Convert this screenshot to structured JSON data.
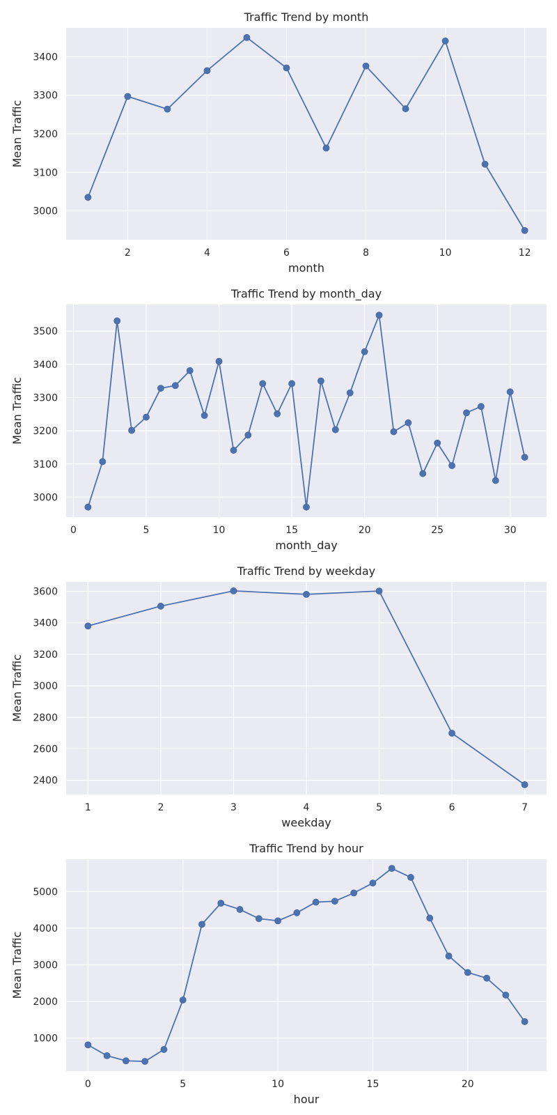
{
  "chart_data": [
    {
      "type": "line",
      "title": "Traffic Trend by month",
      "xlabel": "month",
      "ylabel": "Mean Traffic",
      "x": [
        1,
        2,
        3,
        4,
        5,
        6,
        7,
        8,
        9,
        10,
        11,
        12
      ],
      "values": [
        3035,
        3297,
        3264,
        3364,
        3450,
        3371,
        3163,
        3376,
        3265,
        3441,
        3121,
        2949
      ],
      "xlim": [
        0.45,
        12.55
      ],
      "ylim": [
        2925,
        3475
      ],
      "xticks": [
        2,
        4,
        6,
        8,
        10,
        12
      ],
      "xtick_labels": [
        "2",
        "4",
        "6",
        "8",
        "10",
        "12"
      ],
      "yticks": [
        3000,
        3100,
        3200,
        3300,
        3400
      ],
      "ytick_labels": [
        "3000",
        "3100",
        "3200",
        "3300",
        "3400"
      ],
      "grid": true
    },
    {
      "type": "line",
      "title": "Traffic Trend by month_day",
      "xlabel": "month_day",
      "ylabel": "Mean Traffic",
      "x": [
        1,
        2,
        3,
        4,
        5,
        6,
        7,
        8,
        9,
        10,
        11,
        12,
        13,
        14,
        15,
        16,
        17,
        18,
        19,
        20,
        21,
        22,
        23,
        24,
        25,
        26,
        27,
        28,
        29,
        30,
        31
      ],
      "values": [
        2970,
        3107,
        3531,
        3201,
        3241,
        3328,
        3336,
        3381,
        3246,
        3409,
        3141,
        3187,
        3342,
        3251,
        3342,
        2970,
        3350,
        3203,
        3314,
        3438,
        3548,
        3197,
        3224,
        3071,
        3163,
        3095,
        3254,
        3273,
        3050,
        3317,
        3120
      ],
      "xlim": [
        -0.5,
        32.5
      ],
      "ylim": [
        2940,
        3580
      ],
      "xticks": [
        0,
        5,
        10,
        15,
        20,
        25,
        30
      ],
      "xtick_labels": [
        "0",
        "5",
        "10",
        "15",
        "20",
        "25",
        "30"
      ],
      "yticks": [
        3000,
        3100,
        3200,
        3300,
        3400,
        3500
      ],
      "ytick_labels": [
        "3000",
        "3100",
        "3200",
        "3300",
        "3400",
        "3500"
      ],
      "grid": true
    },
    {
      "type": "line",
      "title": "Traffic Trend by weekday",
      "xlabel": "weekday",
      "ylabel": "Mean Traffic",
      "x": [
        1,
        2,
        3,
        4,
        5,
        6,
        7
      ],
      "values": [
        3380,
        3506,
        3603,
        3581,
        3602,
        2699,
        2372
      ],
      "xlim": [
        0.7,
        7.3
      ],
      "ylim": [
        2310,
        3660
      ],
      "xticks": [
        1,
        2,
        3,
        4,
        5,
        6,
        7
      ],
      "xtick_labels": [
        "1",
        "2",
        "3",
        "4",
        "5",
        "6",
        "7"
      ],
      "yticks": [
        2400,
        2600,
        2800,
        3000,
        3200,
        3400,
        3600
      ],
      "ytick_labels": [
        "2400",
        "2600",
        "2800",
        "3000",
        "3200",
        "3400",
        "3600"
      ],
      "grid": true
    },
    {
      "type": "line",
      "title": "Traffic Trend by hour",
      "xlabel": "hour",
      "ylabel": "Mean Traffic",
      "x": [
        0,
        1,
        2,
        3,
        4,
        5,
        6,
        7,
        8,
        9,
        10,
        11,
        12,
        13,
        14,
        15,
        16,
        17,
        18,
        19,
        20,
        21,
        22,
        23
      ],
      "values": [
        815,
        520,
        380,
        365,
        690,
        2040,
        4105,
        4680,
        4510,
        4260,
        4200,
        4420,
        4710,
        4735,
        4960,
        5230,
        5630,
        5385,
        4275,
        3240,
        2790,
        2635,
        2175,
        1450
      ],
      "xlim": [
        -1.15,
        24.15
      ],
      "ylim": [
        100,
        5880
      ],
      "xticks": [
        0,
        5,
        10,
        15,
        20
      ],
      "xtick_labels": [
        "0",
        "5",
        "10",
        "15",
        "20"
      ],
      "yticks": [
        1000,
        2000,
        3000,
        4000,
        5000
      ],
      "ytick_labels": [
        "1000",
        "2000",
        "3000",
        "4000",
        "5000"
      ],
      "grid": true
    }
  ]
}
